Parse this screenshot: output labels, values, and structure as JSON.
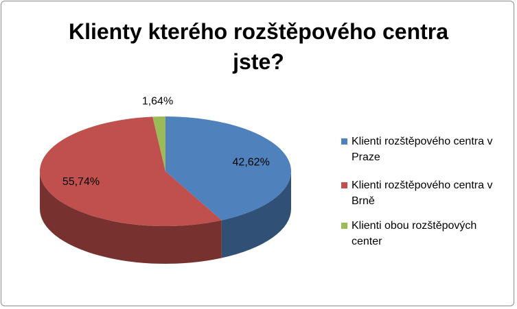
{
  "chart_data": {
    "type": "pie",
    "title": "Klienty kterého rozštěpového centra jste?",
    "categories": [
      "Klienti rozštěpového centra v Praze",
      "Klienti rozštěpového centra v Brně",
      "Klienti obou rozštěpových center"
    ],
    "values": [
      42.62,
      55.74,
      1.64
    ],
    "value_labels": [
      "42,62%",
      "55,74%",
      "1,64%"
    ],
    "colors": [
      "#4f81bd",
      "#c0504d",
      "#9bbb59"
    ],
    "legend": "right"
  }
}
